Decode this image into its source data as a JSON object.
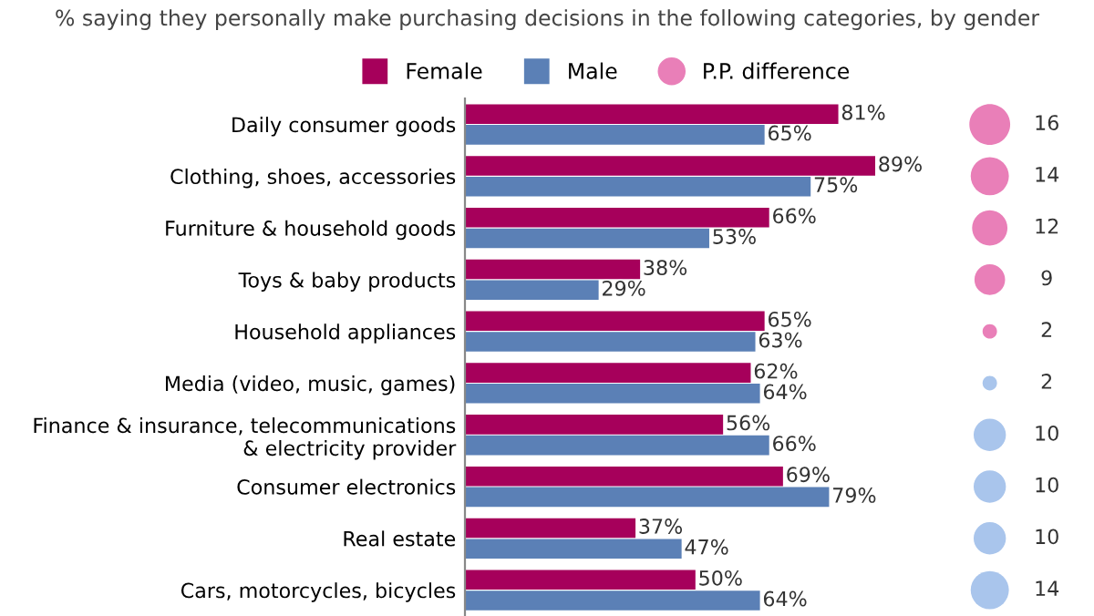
{
  "chart_data": [
    {
      "type": "bar",
      "orientation": "horizontal",
      "title": "% saying they personally make purchasing decisions in the following categories, by gender",
      "categories": [
        "Daily consumer goods",
        "Clothing, shoes, accessories",
        "Furniture & household goods",
        "Toys & baby products",
        "Household appliances",
        "Media (video, music, games)",
        "Finance & insurance, telecommunications\n& electricity provider",
        "Consumer electronics",
        "Real estate",
        "Cars, motorcycles, bicycles"
      ],
      "series": [
        {
          "name": "Female",
          "color": "#a6005b",
          "values": [
            81,
            89,
            66,
            38,
            65,
            62,
            56,
            69,
            37,
            50
          ],
          "value_labels": [
            "81%",
            "89%",
            "66%",
            "38%",
            "65%",
            "62%",
            "56%",
            "69%",
            "37%",
            "50%"
          ]
        },
        {
          "name": "Male",
          "color": "#5b80b6",
          "values": [
            65,
            75,
            53,
            29,
            63,
            64,
            66,
            79,
            47,
            64
          ],
          "value_labels": [
            "65%",
            "75%",
            "53%",
            "29%",
            "63%",
            "64%",
            "66%",
            "79%",
            "47%",
            "64%"
          ]
        }
      ],
      "legend": "top",
      "tick_labels": "y"
    },
    {
      "type": "other",
      "categories": [
        null,
        null,
        null,
        null,
        null,
        null,
        null,
        null,
        null,
        null
      ],
      "series": [
        {
          "name": "P.P. difference",
          "color": "#e97fb8",
          "values": [
            16,
            14,
            12,
            9,
            2,
            2,
            10,
            10,
            10,
            14
          ],
          "colors": [
            "#e97fb8",
            "#e97fb8",
            "#e97fb8",
            "#e97fb8",
            "#e97fb8",
            "#a9c5ec",
            "#a9c5ec",
            "#a9c5ec",
            "#a9c5ec",
            "#a9c5ec"
          ]
        }
      ],
      "data_labels": true,
      "legend": "top"
    }
  ]
}
